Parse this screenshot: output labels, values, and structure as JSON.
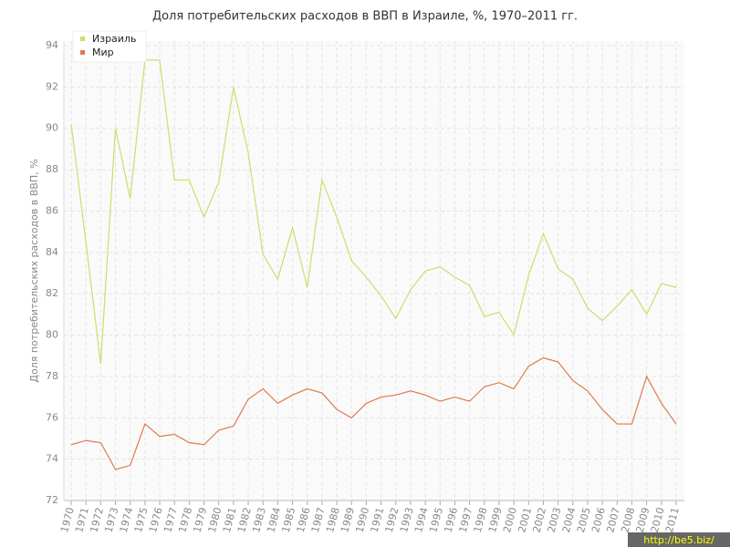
{
  "chart_data": {
    "type": "line",
    "title": "Доля потребительских расходов в ВВП в Израиле, %, 1970–2011 гг.",
    "y_label": "Доля потребительских расходов в ВВП, %",
    "watermark": "http://be5.biz/",
    "categories": [
      "1970",
      "1971",
      "1972",
      "1973",
      "1974",
      "1975",
      "1976",
      "1977",
      "1978",
      "1979",
      "1980",
      "1981",
      "1982",
      "1983",
      "1984",
      "1985",
      "1986",
      "1987",
      "1988",
      "1989",
      "1990",
      "1991",
      "1992",
      "1993",
      "1994",
      "1995",
      "1996",
      "1997",
      "1998",
      "1999",
      "2000",
      "2001",
      "2002",
      "2003",
      "2004",
      "2005",
      "2006",
      "2007",
      "2008",
      "2009",
      "2010",
      "2011"
    ],
    "series": [
      {
        "name": "Израиль",
        "color": "#c8e06c",
        "values": [
          90.2,
          84.5,
          78.6,
          90.0,
          86.6,
          93.3,
          93.3,
          87.5,
          87.5,
          85.7,
          87.4,
          92.0,
          88.8,
          83.9,
          82.7,
          85.2,
          82.3,
          87.5,
          85.7,
          83.6,
          82.8,
          81.9,
          80.8,
          82.2,
          83.1,
          83.3,
          82.8,
          82.4,
          80.9,
          81.1,
          80.0,
          82.9,
          84.9,
          83.2,
          82.7,
          81.3,
          80.7,
          81.4,
          82.2,
          81.0,
          82.5,
          82.3
        ]
      },
      {
        "name": "Мир",
        "color": "#e07a4f",
        "values": [
          74.7,
          74.9,
          74.8,
          73.5,
          73.7,
          75.7,
          75.1,
          75.2,
          74.8,
          74.7,
          75.4,
          75.6,
          76.9,
          77.4,
          76.7,
          77.1,
          77.4,
          77.2,
          76.4,
          76.0,
          76.7,
          77.0,
          77.1,
          77.3,
          77.1,
          76.8,
          77.0,
          76.8,
          77.5,
          77.7,
          77.4,
          78.5,
          78.9,
          78.7,
          77.8,
          77.3,
          76.4,
          75.7,
          75.7,
          78.0,
          76.7,
          75.7
        ]
      }
    ],
    "ylim": [
      72,
      94
    ],
    "yticks": [
      72,
      74,
      76,
      78,
      80,
      82,
      84,
      86,
      88,
      90,
      92,
      94
    ],
    "grid": true,
    "legend": "top-left"
  }
}
